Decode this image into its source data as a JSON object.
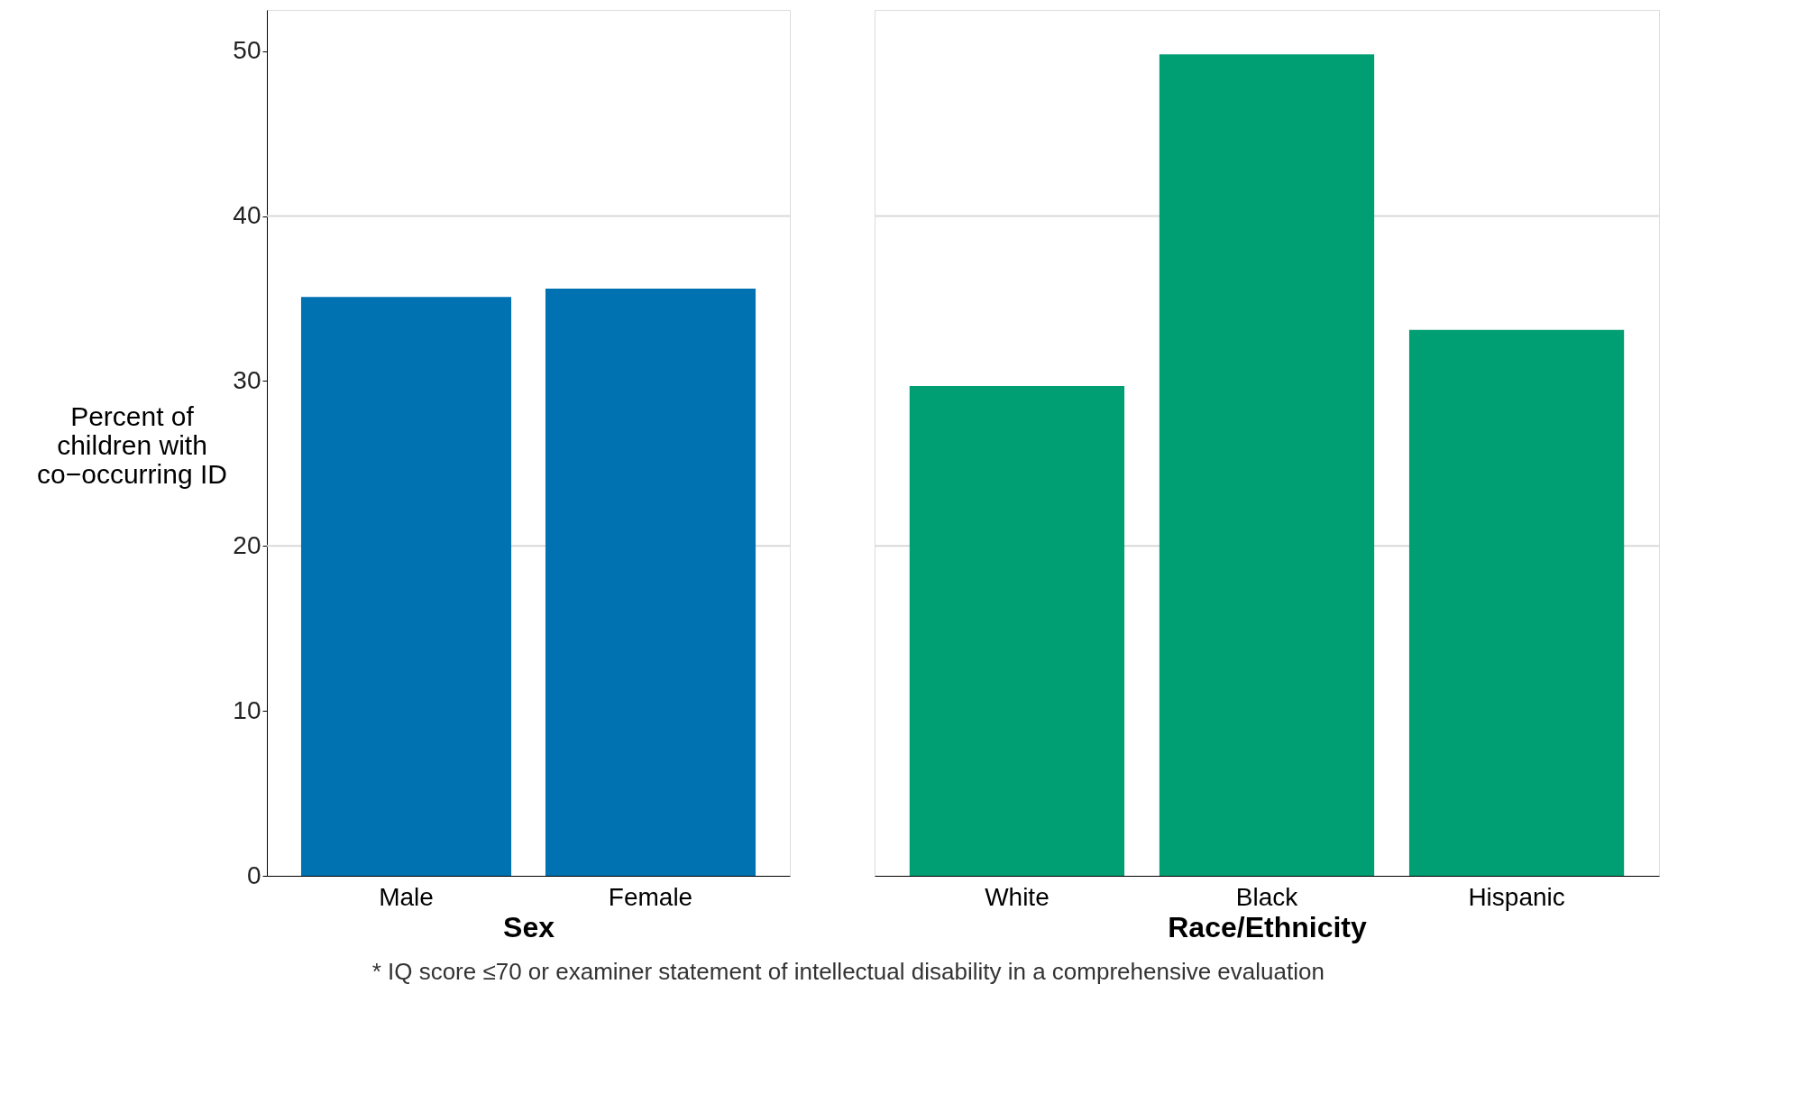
{
  "chart_data": [
    {
      "type": "bar",
      "xlabel": "Sex",
      "ylabel": "Percent of\nchildren with\nco−occurring ID",
      "categories": [
        "Male",
        "Female"
      ],
      "series": [
        {
          "color": "#0072b2",
          "values": [
            35.1,
            35.6
          ]
        }
      ],
      "ylim": [
        0,
        52.5
      ],
      "yticks": [
        0,
        10,
        20,
        30,
        40,
        50
      ],
      "ref_lines": [
        {
          "axis": "y",
          "value": 20,
          "color": "#d9d9d9"
        },
        {
          "axis": "y",
          "value": 40,
          "color": "#d9d9d9"
        }
      ]
    },
    {
      "type": "bar",
      "xlabel": "Race/Ethnicity",
      "categories": [
        "White",
        "Black",
        "Hispanic"
      ],
      "series": [
        {
          "color": "#009e73",
          "values": [
            29.7,
            49.8,
            33.1
          ]
        }
      ],
      "ylim": [
        0,
        52.5
      ],
      "yticks": [
        0,
        10,
        20,
        30,
        40,
        50
      ],
      "tick_labels": "x",
      "ref_lines": [
        {
          "axis": "y",
          "value": 20,
          "color": "#d9d9d9"
        },
        {
          "axis": "y",
          "value": 40,
          "color": "#d9d9d9"
        }
      ],
      "annotations": [
        "* IQ score ≤70 or examiner statement of intellectual disability in a comprehensive evaluation"
      ]
    }
  ]
}
